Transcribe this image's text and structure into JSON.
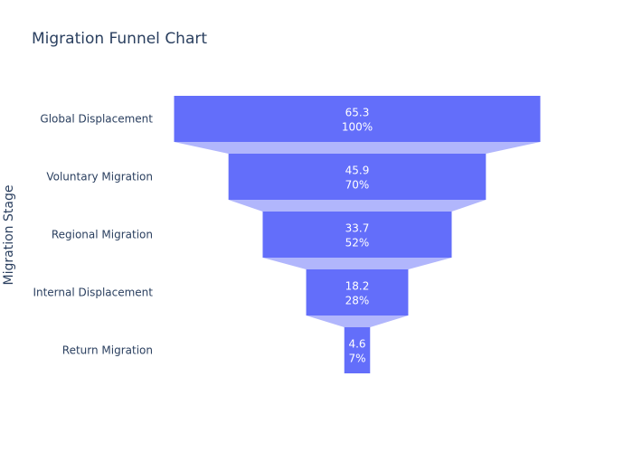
{
  "chart_data": {
    "type": "funnel",
    "title": "Migration Funnel Chart",
    "ylabel": "Migration Stage",
    "xlabel": "",
    "categories": [
      "Global Displacement",
      "Voluntary Migration",
      "Regional Migration",
      "Internal Displacement",
      "Return Migration"
    ],
    "values": [
      65.3,
      45.9,
      33.7,
      18.2,
      4.6
    ],
    "value_labels": [
      "65.3",
      "45.9",
      "33.7",
      "18.2",
      "4.6"
    ],
    "percent_labels": [
      "100%",
      "70%",
      "52%",
      "28%",
      "7%"
    ],
    "grid": false,
    "legend": "none",
    "colors": {
      "bar": "#636efa",
      "connector": "#b1b6fc",
      "text_on_bar": "#ffffff",
      "axis_text": "#2a3f5f"
    }
  }
}
